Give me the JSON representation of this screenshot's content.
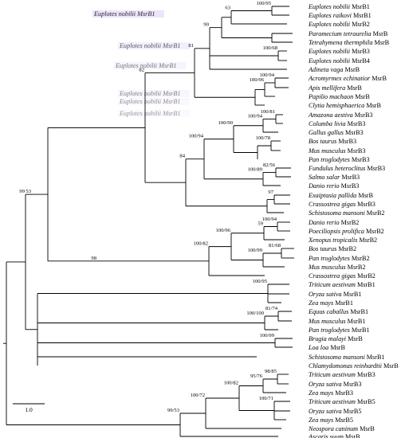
{
  "colors": {
    "red": "#d0242a",
    "purple": "#5a1970",
    "olive": "#a07a1c",
    "ghost": "#f3c6ee",
    "ghost_bg": "#cdbaf2",
    "branch": "#000000"
  },
  "ghost_text": "Euplotes nobilii MsrB1",
  "scale_bar": "1.0",
  "leaves": [
    {
      "sp": "Euplotes nobilii",
      "gene": "MsrB1",
      "color": "red"
    },
    {
      "sp": "Euplotes raikovi",
      "gene": "MsrB1",
      "color": "purple"
    },
    {
      "sp": "Euplotes nobilii",
      "gene": "MsrB2",
      "color": "olive"
    },
    {
      "sp": "Paramecium tetraurelia",
      "gene": "MsrB"
    },
    {
      "sp": "Tetrahymena thermphila",
      "gene": "MsrB"
    },
    {
      "sp": "Euplotes nobilii",
      "gene": "MsrB3",
      "color": "red"
    },
    {
      "sp": "Euplotes nobilii",
      "gene": "MsrB4",
      "color": "red"
    },
    {
      "sp": "Adineta vaga",
      "gene": "MsrB"
    },
    {
      "sp": "Acromyrmex echinatior",
      "gene": "MsrB"
    },
    {
      "sp": "Apis mellifera",
      "gene": "MsrB"
    },
    {
      "sp": "Papilio machaon",
      "gene": "MsrB"
    },
    {
      "sp": "Clytia hemisphaerica",
      "gene": "MsrB"
    },
    {
      "sp": "Amazona aestiva",
      "gene": "MsrB3"
    },
    {
      "sp": "Columba livia",
      "gene": "MsrB3"
    },
    {
      "sp": "Gallus gallus",
      "gene": "MsrB3"
    },
    {
      "sp": "Bos taurus",
      "gene": "MsrB3"
    },
    {
      "sp": "Mus musculus",
      "gene": "MsrB3"
    },
    {
      "sp": "Pan troglodytes",
      "gene": "MsrB3"
    },
    {
      "sp": "Fundulus heteroclitus",
      "gene": "MsrB3"
    },
    {
      "sp": "Salmo salar",
      "gene": "MsrB3"
    },
    {
      "sp": "Danio rerio",
      "gene": "MsrB3"
    },
    {
      "sp": "Exaiptasia pallida",
      "gene": "MsrB"
    },
    {
      "sp": "Crassostrea gigas",
      "gene": "MsrB3"
    },
    {
      "sp": "Schistosoma mansoni",
      "gene": "MsrB2"
    },
    {
      "sp": "Danio rerio",
      "gene": "MsrB2"
    },
    {
      "sp": "Poeciliopsis prolifica",
      "gene": "MsrB2"
    },
    {
      "sp": "Xenopus tropicalis",
      "gene": "MsrB2"
    },
    {
      "sp": "Bos taurus",
      "gene": "MsrB2"
    },
    {
      "sp": "Pan troglodytes",
      "gene": "MsrB2"
    },
    {
      "sp": "Mus musculus",
      "gene": "MsrB2"
    },
    {
      "sp": "Crassostrea gigas",
      "gene": "MsrB2"
    },
    {
      "sp": "Triticum aestivum",
      "gene": "MsrB1"
    },
    {
      "sp": "Oryza sativa",
      "gene": "MsrB1"
    },
    {
      "sp": "Zea mays",
      "gene": "MsrB1"
    },
    {
      "sp": "Equus caballus",
      "gene": "MsrB1"
    },
    {
      "sp": "Mus musculus",
      "gene": "MsrB1"
    },
    {
      "sp": "Pan troglodytes",
      "gene": "MsrB1"
    },
    {
      "sp": "Brugia malayi",
      "gene": "MsrB"
    },
    {
      "sp": "Loa loa",
      "gene": "MsrB"
    },
    {
      "sp": "Schistosoma mansoni",
      "gene": "MsrB1"
    },
    {
      "sp": "Chlamydomonas reinhardtii",
      "gene": "MsrB"
    },
    {
      "sp": "Triticum aestivum",
      "gene": "MsrB3"
    },
    {
      "sp": "Oryza sativa",
      "gene": "MsrB3"
    },
    {
      "sp": "Zea mays",
      "gene": "MsrB3"
    },
    {
      "sp": "Triticum aestivum",
      "gene": "MsrB5"
    },
    {
      "sp": "Oryza sativa",
      "gene": "MsrB5"
    },
    {
      "sp": "Zea mays",
      "gene": "MsrB5"
    },
    {
      "sp": "Neospora caninum",
      "gene": "MsrB"
    },
    {
      "sp": "Ascaris suum",
      "gene": "MsrB"
    }
  ],
  "support": [
    {
      "id": "n_eup",
      "label": "100/95"
    },
    {
      "id": "n_63",
      "label": "63"
    },
    {
      "id": "n_b34",
      "label": "100/68"
    },
    {
      "id": "n_90",
      "label": "90"
    },
    {
      "id": "n_acro",
      "label": "100/94"
    },
    {
      "id": "n_hym",
      "label": "100/96"
    },
    {
      "id": "n_81",
      "label": "81"
    },
    {
      "id": "n_amz",
      "label": "100/81"
    },
    {
      "id": "n_birds",
      "label": "100/94"
    },
    {
      "id": "n_bosmus",
      "label": "100/78"
    },
    {
      "id": "n_amn",
      "label": "100/90"
    },
    {
      "id": "n_fund",
      "label": "82/56"
    },
    {
      "id": "n_fish",
      "label": "100/89"
    },
    {
      "id": "n_vertb3",
      "label": "100/94"
    },
    {
      "id": "n_exa",
      "label": "97"
    },
    {
      "id": "n_84",
      "label": "84"
    },
    {
      "id": "n_82",
      "label": "82"
    },
    {
      "id": "n_danpoe",
      "label": "100/94"
    },
    {
      "id": "n_59",
      "label": "59"
    },
    {
      "id": "n_bospan",
      "label": "81/68"
    },
    {
      "id": "n_mam2",
      "label": "100/99"
    },
    {
      "id": "n_vertb2",
      "label": "100/96"
    },
    {
      "id": "n_b2",
      "label": "100/82"
    },
    {
      "id": "n_98",
      "label": "98"
    },
    {
      "id": "n_53",
      "label": "53"
    },
    {
      "id": "n_plantb1",
      "label": "100/95"
    },
    {
      "id": "n_equmus",
      "label": "81/74"
    },
    {
      "id": "n_mamb1",
      "label": "100/100"
    },
    {
      "id": "n_nem",
      "label": "100/99"
    },
    {
      "id": "n_99",
      "label": "99"
    },
    {
      "id": "n_trb3",
      "label": "98/85"
    },
    {
      "id": "n_b3pl",
      "label": "95/76"
    },
    {
      "id": "n_b5",
      "label": "100/71"
    },
    {
      "id": "n_pl35",
      "label": "100/82"
    },
    {
      "id": "n_plneo",
      "label": "100/72"
    },
    {
      "id": "n_bottom",
      "label": "99/53"
    }
  ]
}
